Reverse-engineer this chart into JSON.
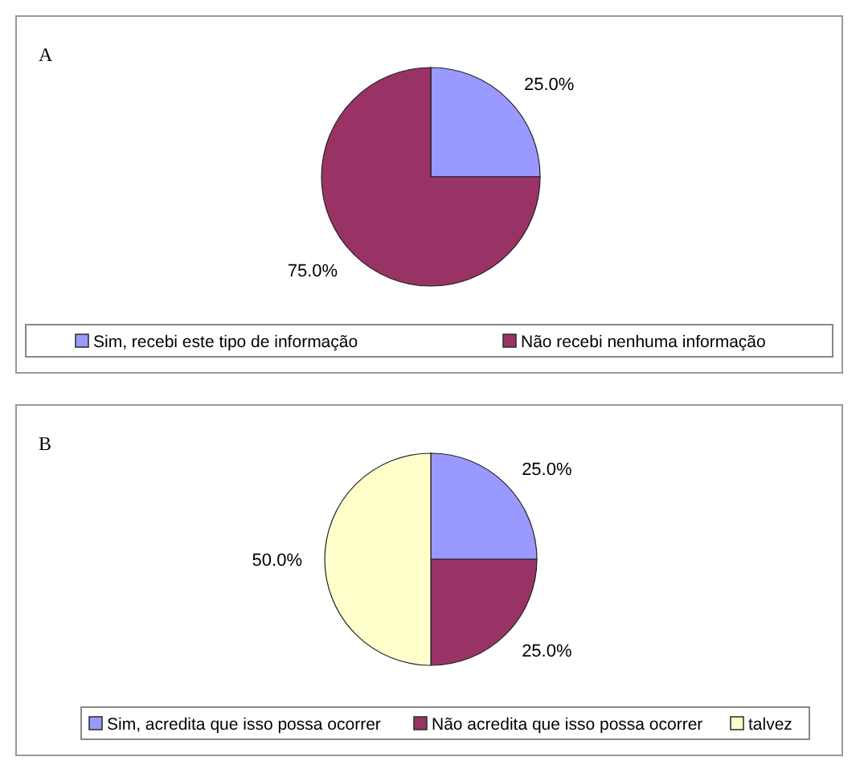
{
  "chart_data": [
    {
      "type": "pie",
      "title": "A",
      "categories": [
        "Sim, recebi este tipo de informação",
        "Não recebi nenhuma informação"
      ],
      "values": [
        25,
        75
      ],
      "colors": [
        "#9999ff",
        "#993366"
      ],
      "value_labels": [
        "25.0%",
        "75.0%"
      ],
      "legend": "bottom"
    },
    {
      "type": "pie",
      "title": "B",
      "categories": [
        "Sim, acredita que isso possa ocorrer",
        "Não acredita que isso possa ocorrer",
        "talvez"
      ],
      "values": [
        25,
        25,
        50
      ],
      "colors": [
        "#9999ff",
        "#993366",
        "#ffffcc"
      ],
      "value_labels": [
        "25.0%",
        "25.0%",
        "50.0%"
      ],
      "legend": "bottom"
    }
  ]
}
